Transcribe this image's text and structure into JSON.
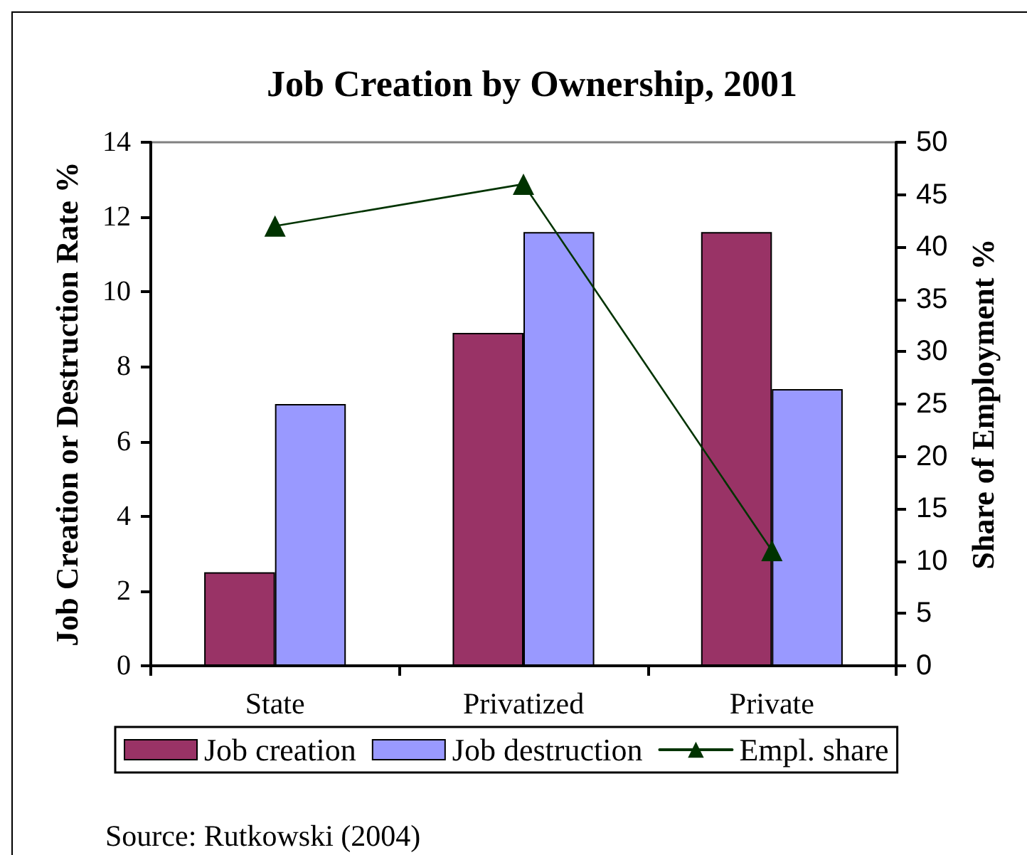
{
  "chart_data": {
    "type": "bar",
    "title": "Job Creation by Ownership, 2001",
    "ylabel": "Job Creation or Destruction Rate %",
    "y2label": "Share of Employment %",
    "categories": [
      "State",
      "Privatized",
      "Private"
    ],
    "series": [
      {
        "name": "Job creation",
        "color": "#993366",
        "values": [
          2.5,
          8.9,
          11.6
        ]
      },
      {
        "name": "Job destruction",
        "color": "#9999ff",
        "values": [
          7.0,
          11.6,
          7.4
        ]
      },
      {
        "name": "Empl. share",
        "type": "line",
        "axis": "y2",
        "color": "#003300",
        "values": [
          42,
          46,
          11
        ]
      }
    ],
    "ylim": [
      0,
      14
    ],
    "yticks": [
      0,
      2,
      4,
      6,
      8,
      10,
      12,
      14
    ],
    "y2lim": [
      0,
      50
    ],
    "y2ticks": [
      0,
      5,
      10,
      15,
      20,
      25,
      30,
      35,
      40,
      45,
      50
    ],
    "marker": "triangle",
    "legend": "bottom",
    "annotations": [
      "Source: Rutkowski (2004)"
    ]
  }
}
